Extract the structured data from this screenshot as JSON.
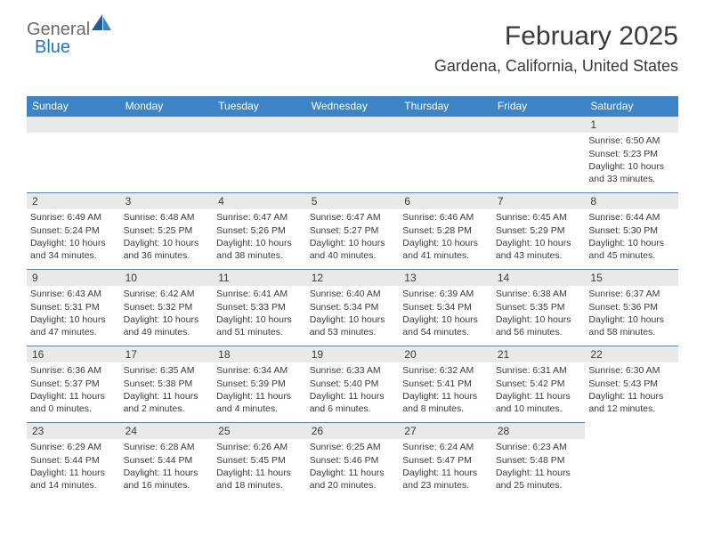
{
  "logo": {
    "text1": "General",
    "text2": "Blue"
  },
  "header": {
    "title": "February 2025",
    "location": "Gardena, California, United States"
  },
  "theme": {
    "header_bg": "#3c84c5",
    "header_text": "#ffffff",
    "daynum_bg": "#e9e9e9",
    "border_color": "#5a7ea5",
    "text_color": "#3a3a3a",
    "logo_gray": "#6b6b6b",
    "logo_blue": "#2176c0"
  },
  "weekdays": [
    "Sunday",
    "Monday",
    "Tuesday",
    "Wednesday",
    "Thursday",
    "Friday",
    "Saturday"
  ],
  "leading_empty": 6,
  "days": [
    {
      "n": "1",
      "sunrise": "Sunrise: 6:50 AM",
      "sunset": "Sunset: 5:23 PM",
      "daylight": "Daylight: 10 hours and 33 minutes."
    },
    {
      "n": "2",
      "sunrise": "Sunrise: 6:49 AM",
      "sunset": "Sunset: 5:24 PM",
      "daylight": "Daylight: 10 hours and 34 minutes."
    },
    {
      "n": "3",
      "sunrise": "Sunrise: 6:48 AM",
      "sunset": "Sunset: 5:25 PM",
      "daylight": "Daylight: 10 hours and 36 minutes."
    },
    {
      "n": "4",
      "sunrise": "Sunrise: 6:47 AM",
      "sunset": "Sunset: 5:26 PM",
      "daylight": "Daylight: 10 hours and 38 minutes."
    },
    {
      "n": "5",
      "sunrise": "Sunrise: 6:47 AM",
      "sunset": "Sunset: 5:27 PM",
      "daylight": "Daylight: 10 hours and 40 minutes."
    },
    {
      "n": "6",
      "sunrise": "Sunrise: 6:46 AM",
      "sunset": "Sunset: 5:28 PM",
      "daylight": "Daylight: 10 hours and 41 minutes."
    },
    {
      "n": "7",
      "sunrise": "Sunrise: 6:45 AM",
      "sunset": "Sunset: 5:29 PM",
      "daylight": "Daylight: 10 hours and 43 minutes."
    },
    {
      "n": "8",
      "sunrise": "Sunrise: 6:44 AM",
      "sunset": "Sunset: 5:30 PM",
      "daylight": "Daylight: 10 hours and 45 minutes."
    },
    {
      "n": "9",
      "sunrise": "Sunrise: 6:43 AM",
      "sunset": "Sunset: 5:31 PM",
      "daylight": "Daylight: 10 hours and 47 minutes."
    },
    {
      "n": "10",
      "sunrise": "Sunrise: 6:42 AM",
      "sunset": "Sunset: 5:32 PM",
      "daylight": "Daylight: 10 hours and 49 minutes."
    },
    {
      "n": "11",
      "sunrise": "Sunrise: 6:41 AM",
      "sunset": "Sunset: 5:33 PM",
      "daylight": "Daylight: 10 hours and 51 minutes."
    },
    {
      "n": "12",
      "sunrise": "Sunrise: 6:40 AM",
      "sunset": "Sunset: 5:34 PM",
      "daylight": "Daylight: 10 hours and 53 minutes."
    },
    {
      "n": "13",
      "sunrise": "Sunrise: 6:39 AM",
      "sunset": "Sunset: 5:34 PM",
      "daylight": "Daylight: 10 hours and 54 minutes."
    },
    {
      "n": "14",
      "sunrise": "Sunrise: 6:38 AM",
      "sunset": "Sunset: 5:35 PM",
      "daylight": "Daylight: 10 hours and 56 minutes."
    },
    {
      "n": "15",
      "sunrise": "Sunrise: 6:37 AM",
      "sunset": "Sunset: 5:36 PM",
      "daylight": "Daylight: 10 hours and 58 minutes."
    },
    {
      "n": "16",
      "sunrise": "Sunrise: 6:36 AM",
      "sunset": "Sunset: 5:37 PM",
      "daylight": "Daylight: 11 hours and 0 minutes."
    },
    {
      "n": "17",
      "sunrise": "Sunrise: 6:35 AM",
      "sunset": "Sunset: 5:38 PM",
      "daylight": "Daylight: 11 hours and 2 minutes."
    },
    {
      "n": "18",
      "sunrise": "Sunrise: 6:34 AM",
      "sunset": "Sunset: 5:39 PM",
      "daylight": "Daylight: 11 hours and 4 minutes."
    },
    {
      "n": "19",
      "sunrise": "Sunrise: 6:33 AM",
      "sunset": "Sunset: 5:40 PM",
      "daylight": "Daylight: 11 hours and 6 minutes."
    },
    {
      "n": "20",
      "sunrise": "Sunrise: 6:32 AM",
      "sunset": "Sunset: 5:41 PM",
      "daylight": "Daylight: 11 hours and 8 minutes."
    },
    {
      "n": "21",
      "sunrise": "Sunrise: 6:31 AM",
      "sunset": "Sunset: 5:42 PM",
      "daylight": "Daylight: 11 hours and 10 minutes."
    },
    {
      "n": "22",
      "sunrise": "Sunrise: 6:30 AM",
      "sunset": "Sunset: 5:43 PM",
      "daylight": "Daylight: 11 hours and 12 minutes."
    },
    {
      "n": "23",
      "sunrise": "Sunrise: 6:29 AM",
      "sunset": "Sunset: 5:44 PM",
      "daylight": "Daylight: 11 hours and 14 minutes."
    },
    {
      "n": "24",
      "sunrise": "Sunrise: 6:28 AM",
      "sunset": "Sunset: 5:44 PM",
      "daylight": "Daylight: 11 hours and 16 minutes."
    },
    {
      "n": "25",
      "sunrise": "Sunrise: 6:26 AM",
      "sunset": "Sunset: 5:45 PM",
      "daylight": "Daylight: 11 hours and 18 minutes."
    },
    {
      "n": "26",
      "sunrise": "Sunrise: 6:25 AM",
      "sunset": "Sunset: 5:46 PM",
      "daylight": "Daylight: 11 hours and 20 minutes."
    },
    {
      "n": "27",
      "sunrise": "Sunrise: 6:24 AM",
      "sunset": "Sunset: 5:47 PM",
      "daylight": "Daylight: 11 hours and 23 minutes."
    },
    {
      "n": "28",
      "sunrise": "Sunrise: 6:23 AM",
      "sunset": "Sunset: 5:48 PM",
      "daylight": "Daylight: 11 hours and 25 minutes."
    }
  ]
}
